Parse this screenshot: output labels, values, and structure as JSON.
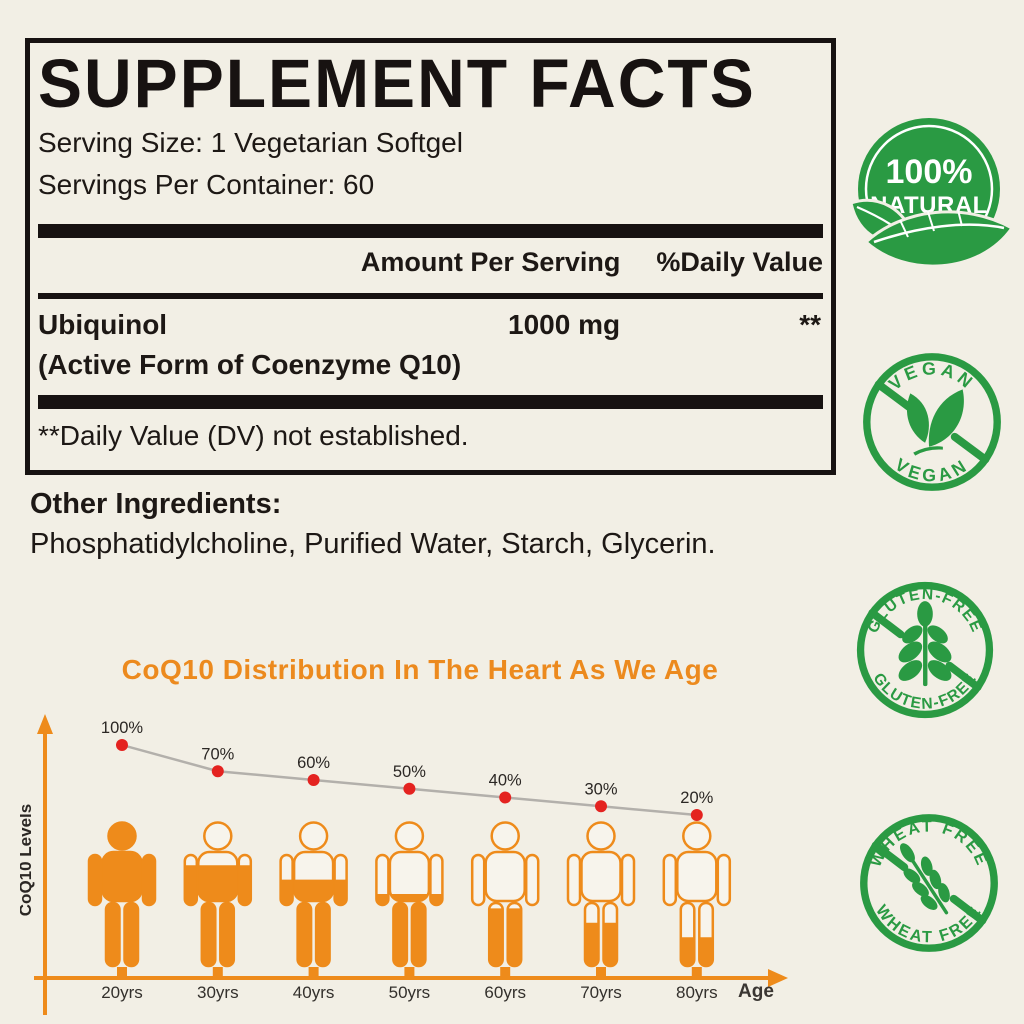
{
  "colors": {
    "background": "#f2efe5",
    "ink": "#171211",
    "accent_orange": "#ee8b1b",
    "title_orange": "#ec8a1e",
    "badge_green": "#2a9a43",
    "dot_red": "#e42320",
    "line_gray": "#b3b0ab"
  },
  "label": {
    "title": "SUPPLEMENT FACTS",
    "serving_size": "Serving Size: 1 Vegetarian Softgel",
    "servings_per_container": "Servings Per Container: 60",
    "amount_header": "Amount Per Serving",
    "daily_value_header": "%Daily Value",
    "ingredient": {
      "name": "Ubiquinol",
      "detail": "(Active Form of Coenzyme Q10)",
      "amount": "1000 mg",
      "daily_value": "**"
    },
    "footnote": "**Daily Value (DV) not established."
  },
  "other_ingredients": {
    "label": "Other Ingredients:",
    "value": "Phosphatidylcholine, Purified Water, Starch, Glycerin."
  },
  "chart_data": {
    "type": "line",
    "title": "CoQ10 Distribution In The Heart As We Age",
    "xlabel": "Age",
    "ylabel": "CoQ10 Levels",
    "categories": [
      "20yrs",
      "30yrs",
      "40yrs",
      "50yrs",
      "60yrs",
      "70yrs",
      "80yrs"
    ],
    "values": [
      100,
      70,
      60,
      50,
      40,
      30,
      20
    ],
    "point_labels": [
      "100%",
      "70%",
      "60%",
      "50%",
      "40%",
      "30%",
      "20%"
    ],
    "ylim": [
      0,
      100
    ],
    "grid": false,
    "legend": false,
    "style_note": "person icons filled from bottom to the percentage value",
    "line_color": "#b3b0ab",
    "point_color": "#e42320",
    "figure_color": "#ee8b1b",
    "axis_color": "#ee8b1b",
    "text_color": "#2b2724"
  },
  "badges": [
    {
      "id": "natural",
      "line1": "100%",
      "line2": "NATURAL"
    },
    {
      "id": "vegan",
      "top": "VEGAN",
      "bottom": "VEGAN"
    },
    {
      "id": "gluten-free",
      "top": "GLUTEN-FREE",
      "bottom": "GLUTEN-FREE"
    },
    {
      "id": "wheat-free",
      "top": "WHEAT FREE",
      "bottom": "WHEAT FREE"
    }
  ]
}
